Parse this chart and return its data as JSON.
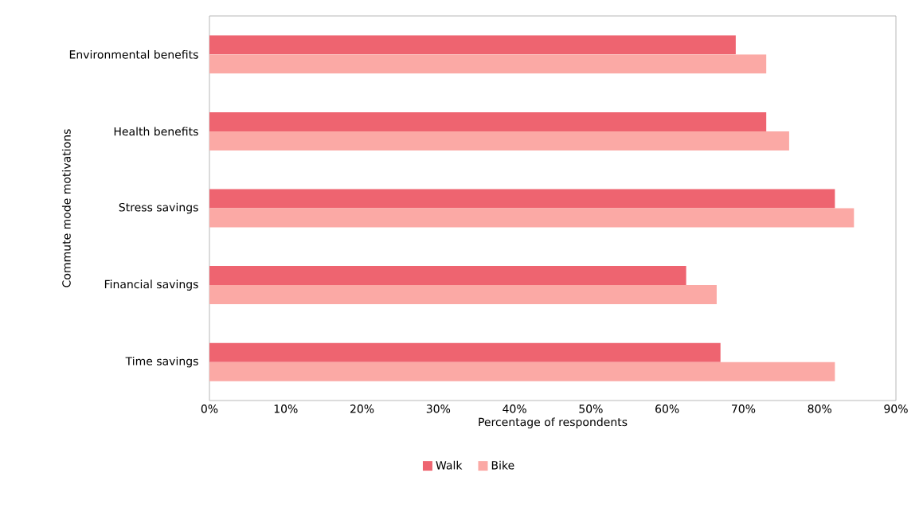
{
  "chart_data": {
    "type": "bar",
    "orientation": "horizontal",
    "xlabel": "Percentage of respondents",
    "ylabel": "Commute mode motivations",
    "categories": [
      "Environmental benefits",
      "Health benefits",
      "Stress savings",
      "Financial savings",
      "Time savings"
    ],
    "series": [
      {
        "name": "Walk",
        "color": "#ee6470",
        "values": [
          69,
          73,
          82,
          62.5,
          67
        ]
      },
      {
        "name": "Bike",
        "color": "#fba9a5",
        "values": [
          73,
          76,
          84.5,
          66.5,
          82
        ]
      }
    ],
    "xlim": [
      0,
      90
    ],
    "xticks": [
      {
        "value": 0,
        "label": "0%"
      },
      {
        "value": 10,
        "label": "10%"
      },
      {
        "value": 20,
        "label": "20%"
      },
      {
        "value": 30,
        "label": "30%"
      },
      {
        "value": 40,
        "label": "40%"
      },
      {
        "value": 50,
        "label": "50%"
      },
      {
        "value": 60,
        "label": "60%"
      },
      {
        "value": 70,
        "label": "70%"
      },
      {
        "value": 80,
        "label": "80%"
      },
      {
        "value": 90,
        "label": "90%"
      }
    ],
    "legend": "bottom",
    "grid": false
  }
}
